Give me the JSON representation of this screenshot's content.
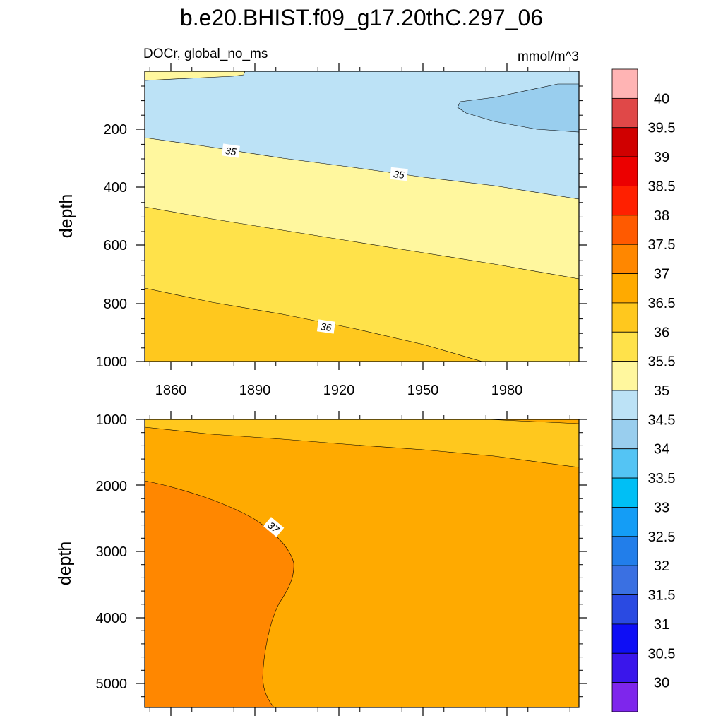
{
  "title": "b.e20.BHIST.f09_g17.20thC.297_06",
  "variable": "DOCr, global_no_ms",
  "units": "mmol/m^3",
  "ylabel": "depth",
  "xticks": [
    "1860",
    "1890",
    "1920",
    "1950",
    "1980"
  ],
  "chart_data": [
    {
      "type": "heatmap",
      "panel": "upper",
      "title": "",
      "xlabel": "",
      "ylabel": "depth",
      "xlim": [
        1850,
        2005
      ],
      "ylim": [
        1000,
        0
      ],
      "yticks": [
        "200",
        "400",
        "600",
        "800",
        "1000"
      ],
      "xticks": [
        "1860",
        "1890",
        "1920",
        "1950",
        "1980"
      ],
      "levels_shown": [
        34.5,
        35,
        35.5,
        36,
        36.5
      ],
      "contour_labels": [
        {
          "text": "35",
          "x": 1880,
          "y": 275
        },
        {
          "text": "35",
          "x": 1941,
          "y": 355
        },
        {
          "text": "36",
          "x": 1915,
          "y": 880
        }
      ],
      "series": [
        {
          "name": "35.0-35.5 surface band",
          "values": [
            [
              1850,
              30
            ],
            [
              1885,
              18
            ],
            [
              1887,
              0
            ]
          ]
        },
        {
          "name": "34.5 contour (35 line)",
          "values": [
            [
              1850,
              228
            ],
            [
              2005,
              440
            ]
          ]
        },
        {
          "name": "35.5 contour",
          "values": [
            [
              1850,
              467
            ],
            [
              2005,
              715
            ]
          ]
        },
        {
          "name": "36 contour",
          "values": [
            [
              1850,
              745
            ],
            [
              1970,
              1000
            ]
          ]
        },
        {
          "name": "34.0-34.5 patch",
          "values": [
            [
              1963,
              90
            ],
            [
              2005,
              50
            ],
            [
              2005,
              205
            ]
          ]
        }
      ]
    },
    {
      "type": "heatmap",
      "panel": "lower",
      "title": "",
      "xlabel": "",
      "ylabel": "depth",
      "xlim": [
        1850,
        2005
      ],
      "ylim": [
        5350,
        1000
      ],
      "yticks": [
        "1000",
        "2000",
        "3000",
        "4000",
        "5000"
      ],
      "xticks": [],
      "levels_shown": [
        36,
        36.5,
        37
      ],
      "contour_labels": [
        {
          "text": "37",
          "x": 1895,
          "y": 2680
        }
      ],
      "series": [
        {
          "name": "36 contour (top band)",
          "values": [
            [
              1850,
              1120
            ],
            [
              2005,
              1080
            ]
          ]
        },
        {
          "name": "36.5 contour",
          "values": [
            [
              1850,
              1120
            ],
            [
              2005,
              1750
            ]
          ]
        },
        {
          "name": "37 contour",
          "values": [
            [
              1850,
              1930
            ],
            [
              1904,
              3150
            ],
            [
              1892,
              5350
            ]
          ]
        }
      ]
    }
  ],
  "colorbar": {
    "labels": [
      "40",
      "39.5",
      "39",
      "38.5",
      "38",
      "37.5",
      "37",
      "36.5",
      "36",
      "35.5",
      "35",
      "34.5",
      "34",
      "33.5",
      "33",
      "32.5",
      "32",
      "31.5",
      "31",
      "30.5",
      "30"
    ],
    "colors": [
      "#FFB4B4",
      "#E04848",
      "#D00000",
      "#EC0000",
      "#FF2000",
      "#FF5A00",
      "#FF8700",
      "#FFAA00",
      "#FFC81E",
      "#FFE24A",
      "#FFF79E",
      "#BCE2F6",
      "#99CEEE",
      "#54C4F4",
      "#00BFF5",
      "#149DF6",
      "#227EEA",
      "#3A70E2",
      "#2A4AE2",
      "#0E0EF5",
      "#3A16EB",
      "#7E26EC"
    ]
  }
}
